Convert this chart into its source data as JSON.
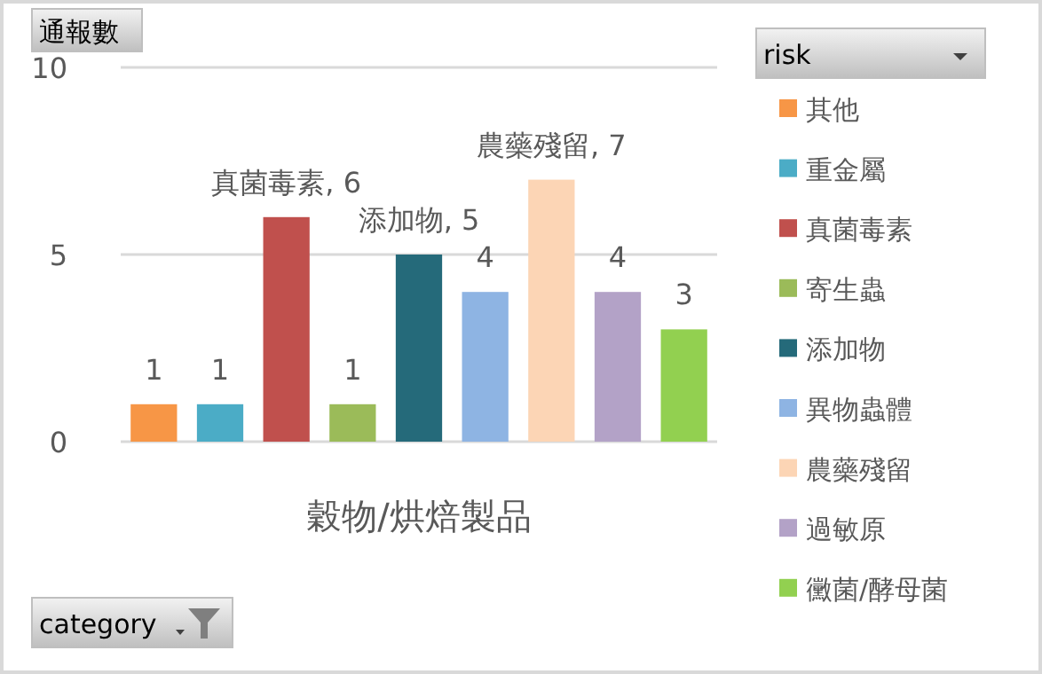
{
  "chart_data": {
    "type": "bar",
    "ylabel": "通報數",
    "xlabel": "穀物/烘焙製品",
    "legend_title": "risk",
    "categories": [
      null,
      null,
      null,
      null,
      null,
      null,
      null,
      null,
      null
    ],
    "series": [
      {
        "name": "其他",
        "color": "#f79646",
        "values": [
          1,
          null,
          null,
          null,
          null,
          null,
          null,
          null,
          null
        ],
        "value_labels": [
          "1",
          null,
          null,
          null,
          null,
          null,
          null,
          null,
          null
        ]
      },
      {
        "name": "重金屬",
        "color": "#4bacc6",
        "values": [
          null,
          1,
          null,
          null,
          null,
          null,
          null,
          null,
          null
        ],
        "value_labels": [
          null,
          "1",
          null,
          null,
          null,
          null,
          null,
          null,
          null
        ]
      },
      {
        "name": "真菌毒素",
        "color": "#c0504d",
        "values": [
          null,
          null,
          6,
          null,
          null,
          null,
          null,
          null,
          null
        ],
        "value_labels": [
          null,
          null,
          "真菌毒素, 6",
          null,
          null,
          null,
          null,
          null,
          null
        ]
      },
      {
        "name": "寄生蟲",
        "color": "#9bbb59",
        "values": [
          null,
          null,
          null,
          1,
          null,
          null,
          null,
          null,
          null
        ],
        "value_labels": [
          null,
          null,
          null,
          "1",
          null,
          null,
          null,
          null,
          null
        ]
      },
      {
        "name": "添加物",
        "color": "#256a7a",
        "values": [
          null,
          null,
          null,
          null,
          5,
          null,
          null,
          null,
          null
        ],
        "value_labels": [
          null,
          null,
          null,
          null,
          "添加物, 5",
          null,
          null,
          null,
          null
        ]
      },
      {
        "name": "異物蟲體",
        "color": "#8eb4e3",
        "values": [
          null,
          null,
          null,
          null,
          null,
          4,
          null,
          null,
          null
        ],
        "value_labels": [
          null,
          null,
          null,
          null,
          null,
          "4",
          null,
          null,
          null
        ]
      },
      {
        "name": "農藥殘留",
        "color": "#fcd5b5",
        "values": [
          null,
          null,
          null,
          null,
          null,
          null,
          7,
          null,
          null
        ],
        "value_labels": [
          null,
          null,
          null,
          null,
          null,
          null,
          "農藥殘留, 7",
          null,
          null
        ]
      },
      {
        "name": "過敏原",
        "color": "#b3a2c7",
        "values": [
          null,
          null,
          null,
          null,
          null,
          null,
          null,
          4,
          null
        ],
        "value_labels": [
          null,
          null,
          null,
          null,
          null,
          null,
          null,
          "4",
          null
        ]
      },
      {
        "name": "黴菌/酵母菌",
        "color": "#92d050",
        "values": [
          null,
          null,
          null,
          null,
          null,
          null,
          null,
          null,
          3
        ],
        "value_labels": [
          null,
          null,
          null,
          null,
          null,
          null,
          null,
          null,
          "3"
        ]
      }
    ],
    "ylim": [
      0,
      10
    ],
    "yticks": [
      0,
      5,
      10
    ],
    "grid": "y",
    "legend": "right",
    "annotations": [
      "category"
    ]
  }
}
